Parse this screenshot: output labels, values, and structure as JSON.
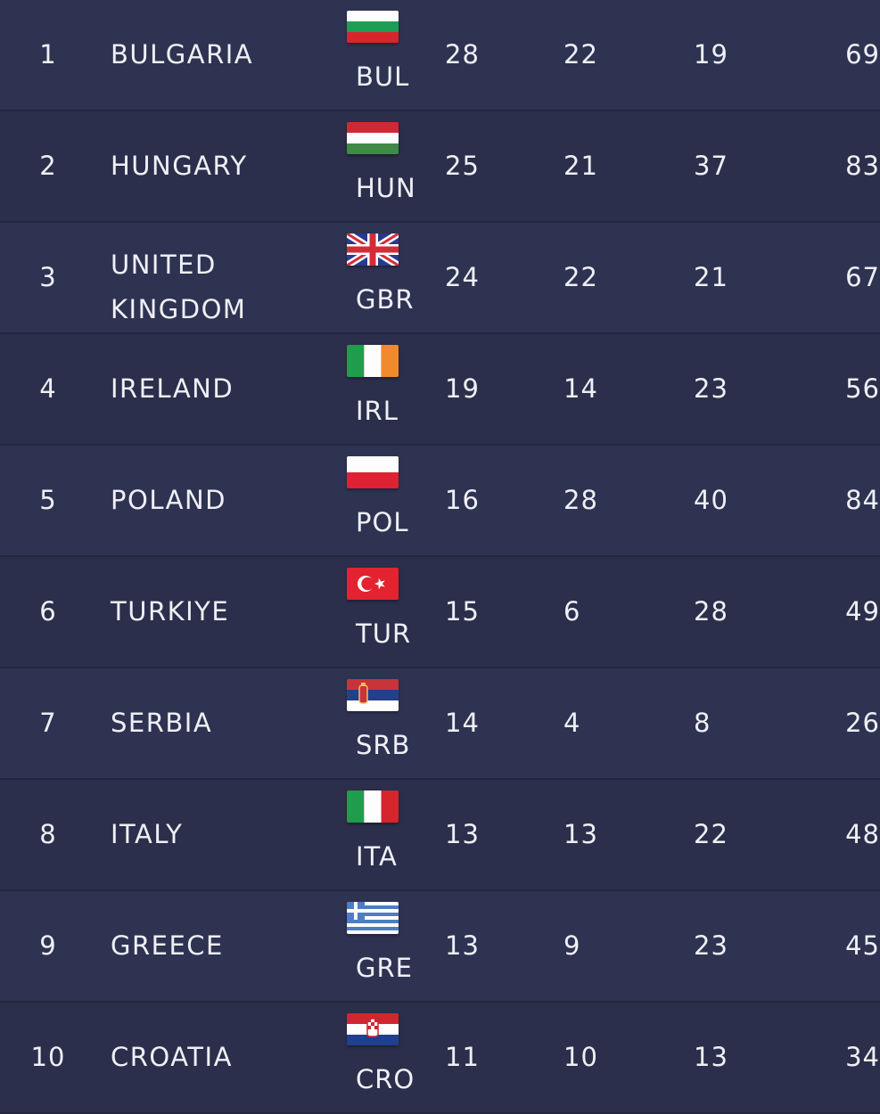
{
  "rows": [
    {
      "rank": "1",
      "name": "BULGARIA",
      "code": "BUL",
      "flag": "bulgaria-flag-icon",
      "gold": "28",
      "silver": "22",
      "bronze": "19",
      "total": "69"
    },
    {
      "rank": "2",
      "name": "HUNGARY",
      "code": "HUN",
      "flag": "hungary-flag-icon",
      "gold": "25",
      "silver": "21",
      "bronze": "37",
      "total": "83"
    },
    {
      "rank": "3",
      "name": "UNITED KINGDOM",
      "code": "GBR",
      "flag": "united-kingdom-flag-icon",
      "gold": "24",
      "silver": "22",
      "bronze": "21",
      "total": "67"
    },
    {
      "rank": "4",
      "name": "IRELAND",
      "code": "IRL",
      "flag": "ireland-flag-icon",
      "gold": "19",
      "silver": "14",
      "bronze": "23",
      "total": "56"
    },
    {
      "rank": "5",
      "name": "POLAND",
      "code": "POL",
      "flag": "poland-flag-icon",
      "gold": "16",
      "silver": "28",
      "bronze": "40",
      "total": "84"
    },
    {
      "rank": "6",
      "name": "TURKIYE",
      "code": "TUR",
      "flag": "turkey-flag-icon",
      "gold": "15",
      "silver": "6",
      "bronze": "28",
      "total": "49"
    },
    {
      "rank": "7",
      "name": "SERBIA",
      "code": "SRB",
      "flag": "serbia-flag-icon",
      "gold": "14",
      "silver": "4",
      "bronze": "8",
      "total": "26"
    },
    {
      "rank": "8",
      "name": "ITALY",
      "code": "ITA",
      "flag": "italy-flag-icon",
      "gold": "13",
      "silver": "13",
      "bronze": "22",
      "total": "48"
    },
    {
      "rank": "9",
      "name": "GREECE",
      "code": "GRE",
      "flag": "greece-flag-icon",
      "gold": "13",
      "silver": "9",
      "bronze": "23",
      "total": "45"
    },
    {
      "rank": "10",
      "name": "CROATIA",
      "code": "CRO",
      "flag": "croatia-flag-icon",
      "gold": "11",
      "silver": "10",
      "bronze": "13",
      "total": "34"
    }
  ],
  "colors": {
    "row_bg": "#2f3352",
    "row_bg_alt": "#2b2f4b",
    "text": "#eef0f6"
  }
}
